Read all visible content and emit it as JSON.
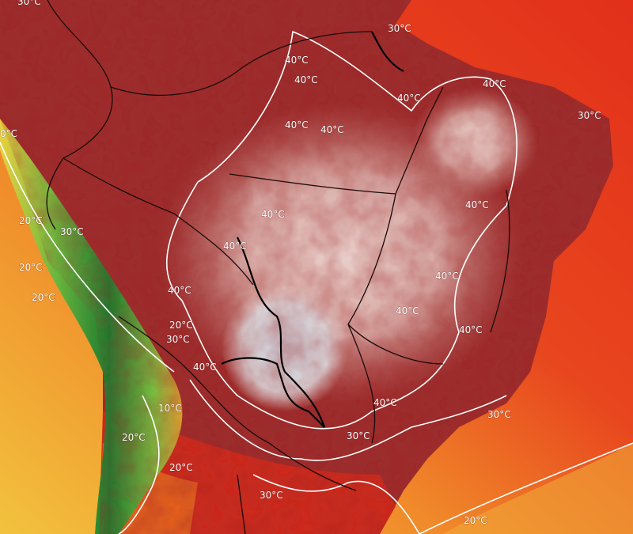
{
  "labels": [
    "30°C",
    "30°C",
    "40°C",
    "40°C",
    "40°C",
    "40°C",
    "40°C",
    "40°C",
    "30°C",
    "0°C",
    "40°C",
    "40°C",
    "20°C",
    "30°C",
    "40°C",
    "20°C",
    "40°C",
    "40°C",
    "20°C",
    "40°C",
    "20°C",
    "30°C",
    "40°C",
    "40°C",
    "40°C",
    "30°C",
    "10°C",
    "30°C",
    "20°C",
    "20°C",
    "30°C",
    "20°C"
  ]
}
